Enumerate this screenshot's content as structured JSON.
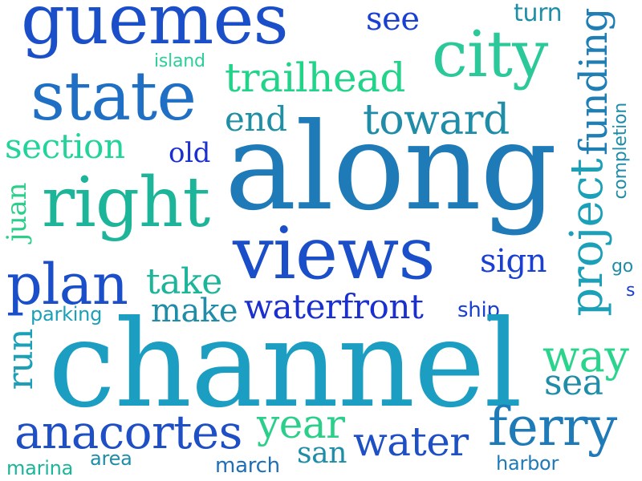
{
  "words": {
    "guemes": "guemes",
    "see": "see",
    "turn": "turn",
    "island": "island",
    "city": "city",
    "trailhead": "trailhead",
    "state": "state",
    "toward": "toward",
    "end": "end",
    "funding": "funding",
    "section": "section",
    "old": "old",
    "along": "along",
    "right": "right",
    "project": "project",
    "completion": "completion",
    "juan": "juan",
    "views": "views",
    "sign": "sign",
    "plan": "plan",
    "take": "take",
    "go": "go",
    "s": "s",
    "make": "make",
    "parking": "parking",
    "waterfront": "waterfront",
    "ship": "ship",
    "run": "run",
    "channel": "channel",
    "way": "way",
    "sea": "sea",
    "anacortes": "anacortes",
    "year": "year",
    "water": "water",
    "ferry": "ferry",
    "marina": "marina",
    "area": "area",
    "march": "march",
    "san": "san",
    "harbor": "harbor"
  },
  "colors": {
    "blue": "#1b4fc9",
    "deep_blue": "#1a2fd0",
    "royal": "#2a55d8",
    "steel": "#1f6fb8",
    "teal": "#1f8fa6",
    "cyan": "#1ba3b3",
    "sea_green": "#16b48e",
    "green": "#22c98a",
    "mint": "#2bd48c"
  }
}
